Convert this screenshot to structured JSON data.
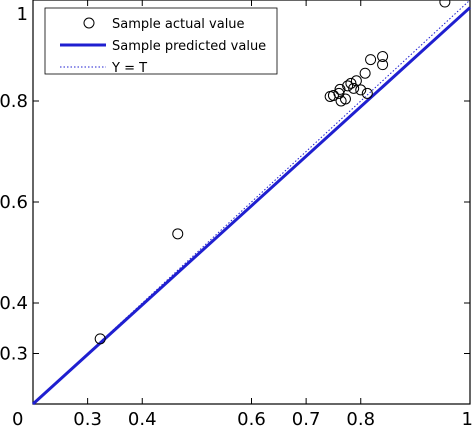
{
  "chart_data": {
    "type": "scatter",
    "title": "",
    "xlabel": "",
    "ylabel": "",
    "xlim": [
      0.2,
      1.0
    ],
    "ylim": [
      0.2,
      1.0
    ],
    "xticks": [
      0.3,
      0.4,
      0.6,
      0.7,
      0.8,
      1.0
    ],
    "xtick_labels": [
      "0.3",
      "0.4",
      "0.6",
      "0.7",
      "0.8",
      "1"
    ],
    "yticks": [
      0.3,
      0.4,
      0.6,
      0.8,
      1.0
    ],
    "ytick_labels": [
      "0.3",
      "0.4",
      "0.6",
      "0.8",
      "1"
    ],
    "origin_label": "0",
    "grid": false,
    "legend_position": "top-left",
    "legend": [
      {
        "label": "Sample actual value",
        "style": "circle-marker"
      },
      {
        "label": "Sample predicted value",
        "style": "solid-line"
      },
      {
        "label": "Y = T",
        "style": "dotted-line"
      }
    ],
    "series": [
      {
        "name": "Sample actual value",
        "kind": "markers",
        "color": "#000000",
        "points": [
          [
            0.323,
            0.329
          ],
          [
            0.465,
            0.537
          ],
          [
            0.744,
            0.809
          ],
          [
            0.75,
            0.811
          ],
          [
            0.76,
            0.815
          ],
          [
            0.762,
            0.823
          ],
          [
            0.764,
            0.8
          ],
          [
            0.772,
            0.804
          ],
          [
            0.776,
            0.83
          ],
          [
            0.782,
            0.835
          ],
          [
            0.787,
            0.825
          ],
          [
            0.792,
            0.84
          ],
          [
            0.8,
            0.822
          ],
          [
            0.808,
            0.855
          ],
          [
            0.812,
            0.815
          ],
          [
            0.818,
            0.882
          ],
          [
            0.84,
            0.872
          ],
          [
            0.84,
            0.888
          ],
          [
            0.954,
            0.996
          ]
        ]
      },
      {
        "name": "Sample predicted value",
        "kind": "line",
        "color": "#1f1fd0",
        "points": [
          [
            0.2,
            0.2
          ],
          [
            1.0,
            0.985
          ]
        ]
      },
      {
        "name": "Y = T",
        "kind": "dotted-line",
        "color": "#1f1fd0",
        "points": [
          [
            0.2,
            0.2
          ],
          [
            1.0,
            1.0
          ]
        ]
      }
    ]
  }
}
